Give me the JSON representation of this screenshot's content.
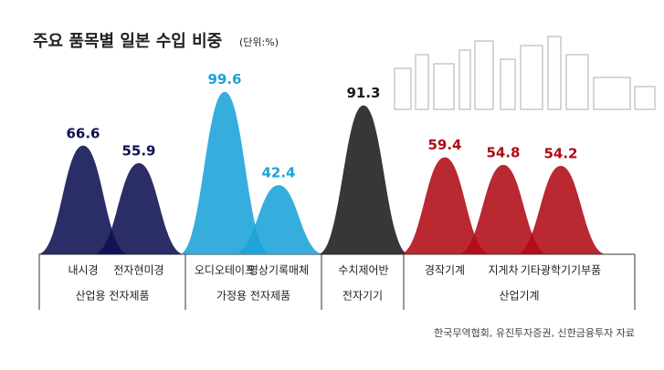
{
  "chart_data": {
    "type": "peak",
    "title": "주요 품목별 일본 수입 비중",
    "subtitle": "(단위:%)",
    "source": "한국무역협회, 유진투자증권, 신한금융투자 자료",
    "ylim": [
      0,
      100
    ],
    "groups": [
      {
        "name": "산업용 전자제품",
        "color": "#0e1052",
        "categories": [
          "내시경",
          "전자현미경"
        ],
        "values": [
          66.6,
          55.9
        ]
      },
      {
        "name": "가정용 전자제품",
        "color": "#1aa3d8",
        "categories": [
          "오디오테이프",
          "영상기록매체"
        ],
        "values": [
          99.6,
          42.4
        ]
      },
      {
        "name": "전자기기",
        "color": "#1b1b1b",
        "categories": [
          "수치제어반"
        ],
        "values": [
          91.3
        ]
      },
      {
        "name": "산업기계",
        "color": "#b00a14",
        "categories": [
          "경작기계",
          "지게차",
          "기타광학기기부품"
        ],
        "values": [
          59.4,
          54.8,
          54.2
        ]
      }
    ]
  }
}
